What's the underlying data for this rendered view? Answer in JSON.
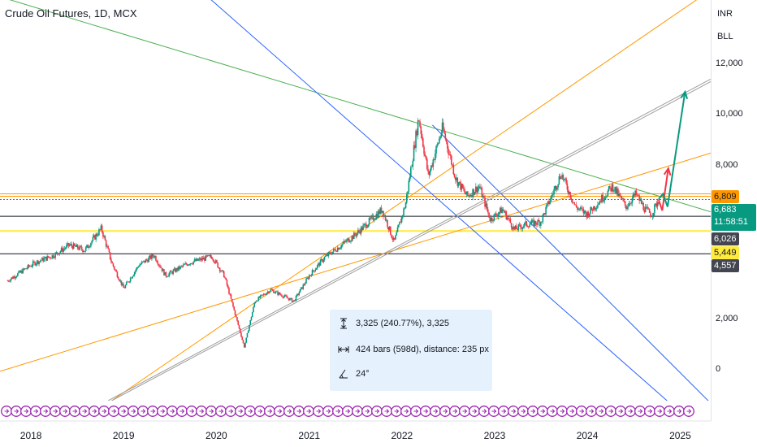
{
  "header": {
    "title": "Crude Oil Futures, 1D, MCX"
  },
  "scale_panel": {
    "unit_currency": "INR",
    "unit_measure": "BLL"
  },
  "price_tags": {
    "upper_level": "6,809",
    "current_price": "6,683",
    "countdown": "11:58:51",
    "mid_level": "6,026",
    "yellow_level": "5,449",
    "lower_level": "4,557"
  },
  "measure_tool": {
    "price_change": "3,325 (240.77%), 3,325",
    "bars_range": "424 bars (598d), distance: 235 px",
    "angle": "24°"
  },
  "colors": {
    "up": "#089981",
    "down": "#f23645",
    "orange": "#ff9800",
    "green_line": "#4caf50",
    "blue_line": "#2962ff",
    "grey_line": "#9e9e9e",
    "yellow": "#ffeb3b",
    "purple": "#9c27b0"
  },
  "chart_data": {
    "type": "candlestick",
    "title": "Crude Oil Futures, 1D, MCX",
    "x_ticks": [
      "2018",
      "2019",
      "2020",
      "2021",
      "2022",
      "2023",
      "2024",
      "2025"
    ],
    "y_ticks": [
      0,
      2000,
      4000,
      8000,
      10000,
      12000
    ],
    "y_tick_labels": [
      "0",
      "2,000",
      "4,000",
      "8,000",
      "10,000",
      "12,000"
    ],
    "ylim": [
      -1200,
      14500
    ],
    "x_range": [
      "2017-09",
      "2025-05"
    ],
    "horizontal_levels": [
      6809,
      6683,
      6026,
      5449,
      4557
    ],
    "close_path": [
      {
        "t": "2017-10-01",
        "v": 3500
      },
      {
        "t": "2018-01-15",
        "v": 4200
      },
      {
        "t": "2018-04-01",
        "v": 4500
      },
      {
        "t": "2018-06-01",
        "v": 4900
      },
      {
        "t": "2018-08-01",
        "v": 4700
      },
      {
        "t": "2018-10-05",
        "v": 5550
      },
      {
        "t": "2018-11-15",
        "v": 4200
      },
      {
        "t": "2019-01-01",
        "v": 3200
      },
      {
        "t": "2019-03-01",
        "v": 4100
      },
      {
        "t": "2019-05-01",
        "v": 4500
      },
      {
        "t": "2019-06-15",
        "v": 3700
      },
      {
        "t": "2019-09-15",
        "v": 4200
      },
      {
        "t": "2019-12-15",
        "v": 4450
      },
      {
        "t": "2020-02-01",
        "v": 3700
      },
      {
        "t": "2020-03-15",
        "v": 2200
      },
      {
        "t": "2020-04-20",
        "v": 900
      },
      {
        "t": "2020-06-01",
        "v": 2700
      },
      {
        "t": "2020-08-01",
        "v": 3150
      },
      {
        "t": "2020-11-01",
        "v": 2700
      },
      {
        "t": "2021-01-01",
        "v": 3700
      },
      {
        "t": "2021-03-01",
        "v": 4400
      },
      {
        "t": "2021-07-01",
        "v": 5300
      },
      {
        "t": "2021-10-15",
        "v": 6300
      },
      {
        "t": "2021-12-01",
        "v": 5000
      },
      {
        "t": "2022-01-15",
        "v": 6500
      },
      {
        "t": "2022-03-08",
        "v": 9900
      },
      {
        "t": "2022-04-15",
        "v": 7600
      },
      {
        "t": "2022-06-10",
        "v": 9500
      },
      {
        "t": "2022-08-01",
        "v": 7500
      },
      {
        "t": "2022-09-15",
        "v": 6800
      },
      {
        "t": "2022-11-01",
        "v": 7200
      },
      {
        "t": "2022-12-15",
        "v": 5900
      },
      {
        "t": "2023-02-01",
        "v": 6300
      },
      {
        "t": "2023-03-20",
        "v": 5500
      },
      {
        "t": "2023-05-01",
        "v": 5700
      },
      {
        "t": "2023-07-01",
        "v": 5800
      },
      {
        "t": "2023-09-20",
        "v": 7700
      },
      {
        "t": "2023-11-15",
        "v": 6400
      },
      {
        "t": "2024-01-01",
        "v": 6100
      },
      {
        "t": "2024-04-10",
        "v": 7200
      },
      {
        "t": "2024-06-01",
        "v": 6400
      },
      {
        "t": "2024-07-10",
        "v": 6900
      },
      {
        "t": "2024-08-15",
        "v": 6300
      },
      {
        "t": "2024-09-10",
        "v": 6100
      },
      {
        "t": "2024-10-08",
        "v": 6683
      }
    ],
    "trend_lines": [
      {
        "color": "#4caf50",
        "from": {
          "t": "2017-09-10",
          "v": 14600
        },
        "to": {
          "t": "2025-05-01",
          "v": 6200
        }
      },
      {
        "color": "#2962ff",
        "from": {
          "t": "2019-12-01",
          "v": 14600
        },
        "to": {
          "t": "2024-11-10",
          "v": -1200
        }
      },
      {
        "color": "#2962ff",
        "from": {
          "t": "2022-05-01",
          "v": 9600
        },
        "to": {
          "t": "2025-05-01",
          "v": -1300
        }
      },
      {
        "color": "#ff9800",
        "from": {
          "t": "2017-09-01",
          "v": -50
        },
        "to": {
          "t": "2025-05-01",
          "v": 8500
        }
      },
      {
        "color": "#ff9800",
        "from": {
          "t": "2018-11-15",
          "v": -1200
        },
        "to": {
          "t": "2025-03-20",
          "v": 14600
        }
      },
      {
        "color": "#9e9e9e",
        "from": {
          "t": "2018-11-01",
          "v": -1200
        },
        "to": {
          "t": "2025-05-01",
          "v": 11400
        }
      },
      {
        "color": "#9e9e9e",
        "from": {
          "t": "2018-11-15",
          "v": -1200
        },
        "to": {
          "t": "2025-05-01",
          "v": 11300
        }
      }
    ],
    "projection": [
      {
        "color": "#f23645",
        "points": [
          {
            "t": "2024-10-08",
            "v": 6683
          },
          {
            "t": "2024-10-22",
            "v": 6250
          },
          {
            "t": "2024-11-15",
            "v": 7900
          }
        ]
      },
      {
        "color": "#089981",
        "points": [
          {
            "t": "2024-10-08",
            "v": 6700
          },
          {
            "t": "2024-10-25",
            "v": 6900
          },
          {
            "t": "2024-11-12",
            "v": 6400
          },
          {
            "t": "2025-01-20",
            "v": 10900
          }
        ]
      }
    ]
  }
}
